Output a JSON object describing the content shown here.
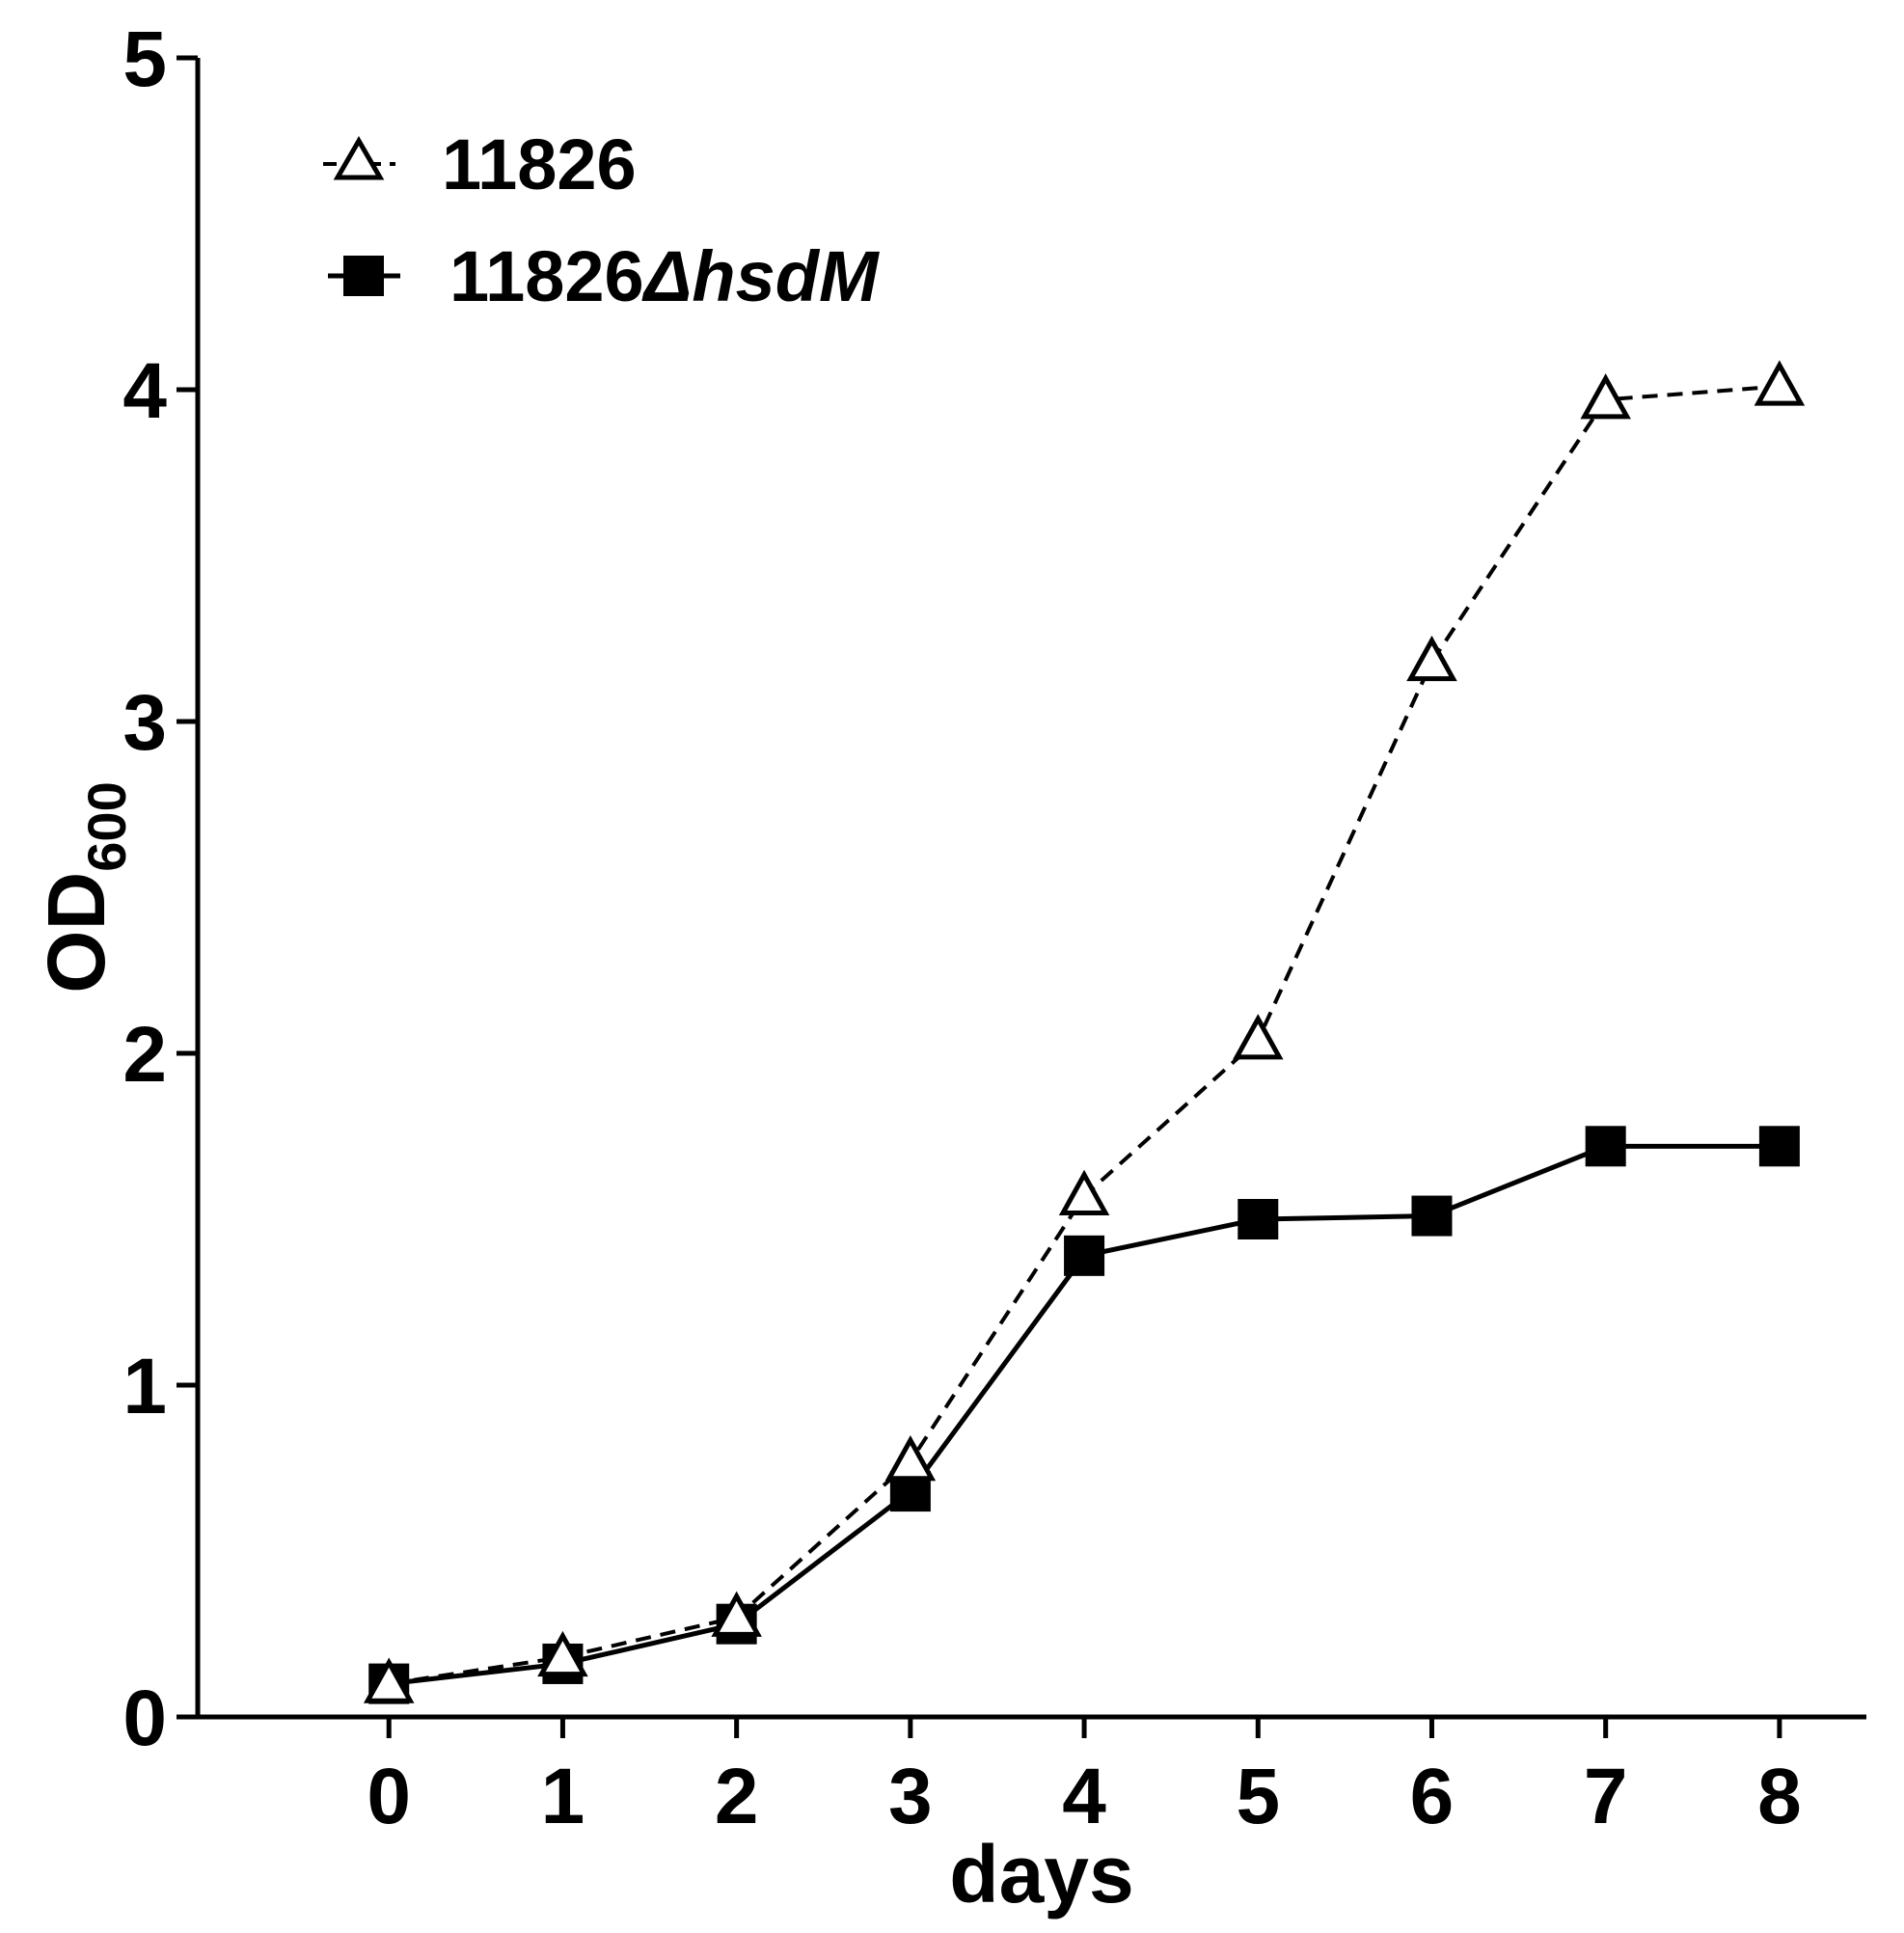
{
  "chart_data": {
    "type": "line",
    "title": "",
    "xlabel": "days",
    "ylabel_main": "OD",
    "ylabel_sub": "600",
    "x": [
      0,
      1,
      2,
      3,
      4,
      5,
      6,
      7,
      8
    ],
    "xticks": [
      "0",
      "1",
      "2",
      "3",
      "4",
      "5",
      "6",
      "7",
      "8"
    ],
    "yticks": [
      "0",
      "1",
      "2",
      "3",
      "4",
      "5"
    ],
    "xlim": [
      -1.1,
      8.5
    ],
    "ylim": [
      0,
      5
    ],
    "grid": false,
    "legend_position": "top-left",
    "series": [
      {
        "name": "11826",
        "name_suffix": "",
        "marker": "open-triangle",
        "line": "dashed",
        "color": "#000000",
        "values": [
          0.1,
          0.18,
          0.3,
          0.77,
          1.57,
          2.04,
          3.18,
          3.97,
          4.01
        ]
      },
      {
        "name": "11826",
        "name_suffix": "ΔhsdM",
        "marker": "filled-square",
        "line": "solid",
        "color": "#000000",
        "values": [
          0.1,
          0.16,
          0.28,
          0.68,
          1.39,
          1.5,
          1.51,
          1.72,
          1.72
        ]
      }
    ]
  }
}
